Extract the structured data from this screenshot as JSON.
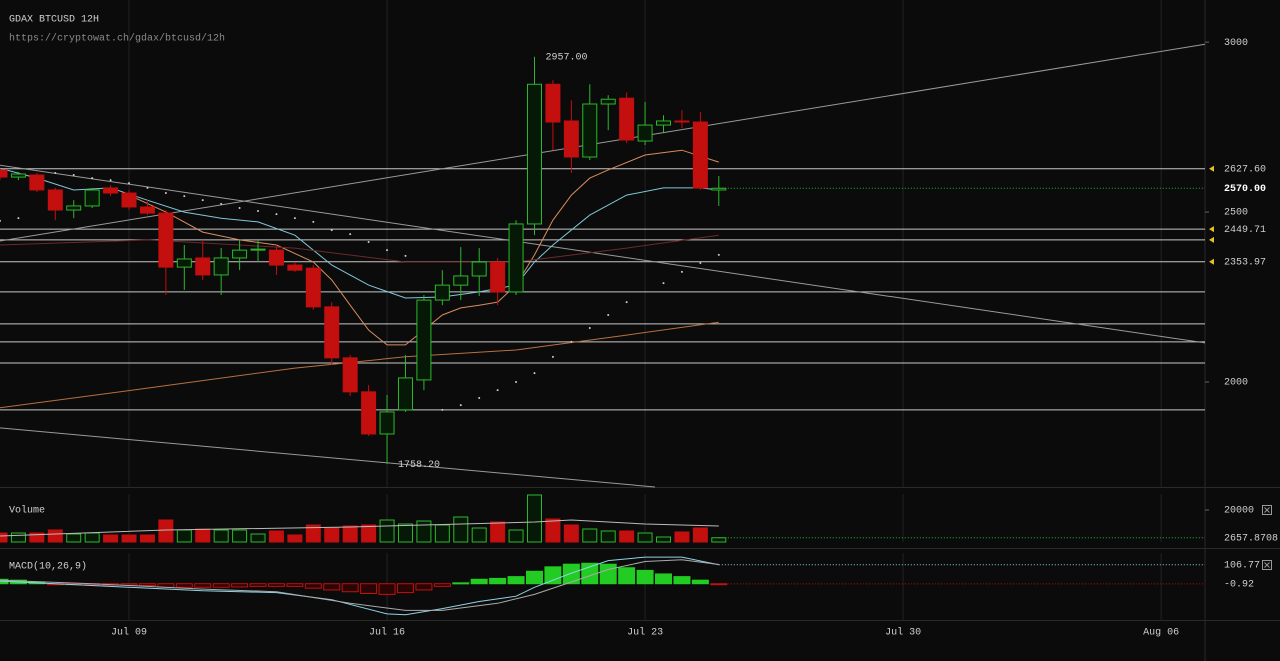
{
  "chart_data": [
    {
      "type": "candlestick",
      "title": "GDAX BTCUSD 12H",
      "subtitle": "https://cryptowat.ch/gdax/btcusd/12h",
      "x": [
        5.5,
        6,
        6.5,
        7,
        7.5,
        8,
        8.5,
        9,
        9.5,
        10,
        10.5,
        11,
        11.5,
        12,
        12.5,
        13,
        13.5,
        14,
        14.5,
        15,
        15.5,
        16,
        16.5,
        17,
        17.5,
        18,
        18.5,
        19,
        19.5,
        20,
        20.5,
        21,
        21.5,
        22,
        22.5,
        23,
        23.5,
        24,
        24.5,
        25
      ],
      "open": [
        2624,
        2603,
        2609,
        2565,
        2506,
        2518,
        2571,
        2556,
        2515,
        2497,
        2338,
        2365,
        2315,
        2365,
        2388,
        2388,
        2344,
        2335,
        2221,
        2071,
        1971,
        1847,
        1918,
        2006,
        2241,
        2285,
        2312,
        2353,
        2265,
        2465,
        2876,
        2768,
        2662,
        2818,
        2835,
        2709,
        2756,
        2768,
        2765,
        2565
      ],
      "high": [
        2629,
        2618,
        2615,
        2571,
        2535,
        2571,
        2579,
        2565,
        2535,
        2506,
        2403,
        2418,
        2394,
        2418,
        2418,
        2403,
        2353,
        2344,
        2235,
        2079,
        1991,
        1962,
        2079,
        2256,
        2329,
        2397,
        2394,
        2365,
        2476,
        2957,
        2888,
        2829,
        2876,
        2844,
        2852,
        2824,
        2785,
        2800,
        2794,
        2606
      ],
      "low": [
        2594,
        2594,
        2559,
        2476,
        2482,
        2512,
        2547,
        2506,
        2491,
        2256,
        2271,
        2300,
        2256,
        2329,
        2353,
        2315,
        2324,
        2212,
        2050,
        1959,
        1841,
        1758.2,
        1912,
        1976,
        2226,
        2241,
        2253,
        2226,
        2256,
        2432,
        2682,
        2615,
        2653,
        2741,
        2703,
        2697,
        2732,
        2747,
        2565,
        2518
      ],
      "close": [
        2603,
        2612,
        2565,
        2506,
        2518,
        2565,
        2556,
        2515,
        2497,
        2338,
        2362,
        2315,
        2365,
        2388,
        2391,
        2344,
        2329,
        2221,
        2071,
        1971,
        1847,
        1912,
        2012,
        2241,
        2285,
        2312,
        2353,
        2265,
        2465,
        2876,
        2765,
        2662,
        2818,
        2832,
        2712,
        2756,
        2768,
        2765,
        2571,
        2570
      ],
      "up_color": "#2db82d",
      "down_color": "#c40f0f",
      "xlim": [
        5.5,
        38.19
      ],
      "xticks": [
        {
          "value": 9,
          "label": "Jul 09"
        },
        {
          "value": 16,
          "label": "Jul 16"
        },
        {
          "value": 23,
          "label": "Jul 23"
        },
        {
          "value": 30,
          "label": "Jul 30"
        },
        {
          "value": 37,
          "label": "Aug 06"
        }
      ],
      "ylim": [
        1691,
        3124
      ],
      "yticks": [
        2000,
        2500,
        3000
      ],
      "grid": true,
      "levels": [
        {
          "value": 2627.6,
          "label": "2627.60",
          "arrow": true
        },
        {
          "value": 2449.71,
          "label": "2449.71",
          "arrow": true
        },
        {
          "value": 2418,
          "arrow": true
        },
        {
          "value": 2353.97,
          "label": "2353.97",
          "arrow": true
        },
        {
          "value": 2265
        },
        {
          "value": 2171
        },
        {
          "value": 2118
        },
        {
          "value": 2056
        },
        {
          "value": 1918
        }
      ],
      "price_line": {
        "value": 2570,
        "label": "2570.00",
        "color": "#2db82d"
      },
      "trend_lines": [
        {
          "x": [
            5.5,
            38.19
          ],
          "values": [
            2415,
            2994
          ]
        },
        {
          "x": [
            5.5,
            38.19
          ],
          "values": [
            2638,
            2115
          ]
        },
        {
          "x": [
            5.5,
            23.27
          ],
          "values": [
            1865,
            1691
          ]
        }
      ],
      "annotations": [
        {
          "x": 20,
          "value": 2957,
          "label": "2957.00"
        },
        {
          "x": 16,
          "value": 1758.2,
          "label": "1758.20"
        }
      ],
      "series": [
        {
          "color": "#7fc8d8",
          "x": [
            5.5,
            6.5,
            7.5,
            8.5,
            9.5,
            10.5,
            11.5,
            12.5,
            13.5,
            14.5,
            15.5,
            16.5,
            17.5,
            18.5,
            19.5,
            20,
            20.5,
            21.5,
            22.5,
            23.5,
            24.5,
            25
          ],
          "values": [
            2629,
            2600,
            2565,
            2571,
            2535,
            2500,
            2482,
            2471,
            2432,
            2344,
            2285,
            2247,
            2250,
            2265,
            2285,
            2353,
            2403,
            2491,
            2550,
            2571,
            2571,
            2565
          ]
        },
        {
          "color": "#d98c5f",
          "x": [
            9,
            10,
            11,
            12,
            13,
            14,
            14.5,
            15,
            15.5,
            16,
            16.5,
            17,
            17.5,
            18,
            18.5,
            19,
            19.5,
            20,
            20.5,
            21,
            21.5,
            22,
            23,
            24,
            25
          ],
          "values": [
            2550,
            2500,
            2441,
            2418,
            2403,
            2353,
            2300,
            2226,
            2153,
            2109,
            2109,
            2153,
            2197,
            2218,
            2226,
            2235,
            2285,
            2374,
            2476,
            2550,
            2600,
            2624,
            2668,
            2682,
            2647
          ]
        },
        {
          "color": "#6b2a2a",
          "x": [
            5.5,
            9.5,
            13.5,
            16.5,
            19.5,
            22.5,
            25
          ],
          "values": [
            2403,
            2418,
            2394,
            2353,
            2353,
            2394,
            2432
          ]
        },
        {
          "color": "#b8703f",
          "x": [
            5.5,
            9.5,
            13.5,
            16.5,
            19.5,
            22.5,
            25
          ],
          "values": [
            1924,
            1982,
            2041,
            2074,
            2094,
            2138,
            2176
          ]
        },
        {
          "color": "#cccccc",
          "style": "dots",
          "x": [
            5.5,
            6,
            7,
            7.5,
            8,
            8.5,
            9,
            9.5,
            10,
            10.5,
            11,
            11.5,
            12,
            12.5,
            13,
            13.5,
            14,
            14.5,
            15,
            15.5,
            16,
            16.5,
            17.5,
            18,
            18.5,
            19,
            19.5,
            20,
            20.5,
            21,
            21.5,
            22,
            22.5,
            23.5,
            24,
            24.5,
            25
          ],
          "values": [
            2474,
            2482,
            2615,
            2609,
            2600,
            2594,
            2585,
            2571,
            2556,
            2547,
            2535,
            2524,
            2512,
            2503,
            2494,
            2482,
            2471,
            2447,
            2435,
            2412,
            2388,
            2371,
            1918,
            1932,
            1953,
            1976,
            2000,
            2026,
            2074,
            2118,
            2159,
            2197,
            2235,
            2291,
            2324,
            2350,
            2374
          ]
        }
      ]
    },
    {
      "type": "volume",
      "title": "Volume",
      "x": [
        5.5,
        6,
        6.5,
        7,
        7.5,
        8,
        8.5,
        9,
        9.5,
        10,
        10.5,
        11,
        11.5,
        12,
        12.5,
        13,
        13.5,
        14,
        14.5,
        15,
        15.5,
        16,
        16.5,
        17,
        17.5,
        18,
        18.5,
        19,
        19.5,
        20,
        20.5,
        21,
        21.5,
        22,
        22.5,
        23,
        23.5,
        24,
        24.5,
        25
      ],
      "values": [
        5625,
        5625,
        5625,
        7500,
        5000,
        5625,
        4375,
        4375,
        4375,
        13750,
        7500,
        8125,
        7500,
        7500,
        5000,
        6875,
        4375,
        10625,
        8750,
        10000,
        10625,
        13750,
        11250,
        13125,
        10625,
        15625,
        8750,
        12500,
        7500,
        29375,
        14375,
        10625,
        8125,
        6875,
        6875,
        5625,
        3125,
        6250,
        8750,
        2657.8708
      ],
      "xlim": [
        5.5,
        38.19
      ],
      "ylim": [
        0,
        30000
      ],
      "yticks": [
        20000
      ],
      "series": [
        {
          "color": "#bbbbbb",
          "x": [
            5.5,
            10,
            15,
            20,
            21,
            23,
            25
          ],
          "values": [
            3750,
            7500,
            9375,
            12500,
            13750,
            11250,
            10000
          ]
        }
      ]
    },
    {
      "type": "macd",
      "title": "MACD(10,26,9)",
      "x": [
        5.5,
        6,
        6.5,
        7,
        7.5,
        8,
        8.5,
        9,
        9.5,
        10,
        10.5,
        11,
        11.5,
        12,
        12.5,
        13,
        13.5,
        14,
        14.5,
        15,
        15.5,
        16,
        16.5,
        17,
        17.5,
        18,
        18.5,
        19,
        19.5,
        20,
        20.5,
        21,
        21.5,
        22,
        22.5,
        23,
        23.5,
        24,
        24.5,
        25
      ],
      "values": [
        25,
        20,
        10,
        -5,
        -5,
        -5,
        -8,
        -8,
        -10,
        -20,
        -20,
        -20,
        -20,
        -18,
        -15,
        -15,
        -15,
        -25,
        -35,
        -45,
        -55,
        -60,
        -50,
        -35,
        -15,
        5,
        25,
        30,
        40,
        70,
        95,
        110,
        115,
        110,
        90,
        75,
        55,
        40,
        20,
        -0.92
      ],
      "pos_color": "#22cc22",
      "neg_color": "#c40f0f",
      "xlim": [
        5.5,
        38.19
      ],
      "ylim": [
        -207,
        173
      ],
      "series": [
        {
          "color": "#8fd3e8",
          "x": [
            5.5,
            7,
            9,
            11,
            13,
            14.5,
            16,
            16.5,
            17.5,
            18.5,
            19.5,
            20,
            21,
            22,
            23,
            24,
            25
          ],
          "values": [
            15,
            0,
            -20,
            -40,
            -50,
            -90,
            -170,
            -175,
            -140,
            -100,
            -70,
            -20,
            60,
            130,
            150,
            150,
            106.77
          ]
        },
        {
          "color": "#aaaaaa",
          "x": [
            5.5,
            8,
            11,
            13,
            15,
            16.5,
            17.5,
            19,
            20,
            21,
            22,
            23,
            24,
            25
          ],
          "values": [
            20,
            0,
            -30,
            -45,
            -110,
            -150,
            -150,
            -110,
            -60,
            10,
            80,
            125,
            135,
            108
          ]
        }
      ]
    }
  ]
}
